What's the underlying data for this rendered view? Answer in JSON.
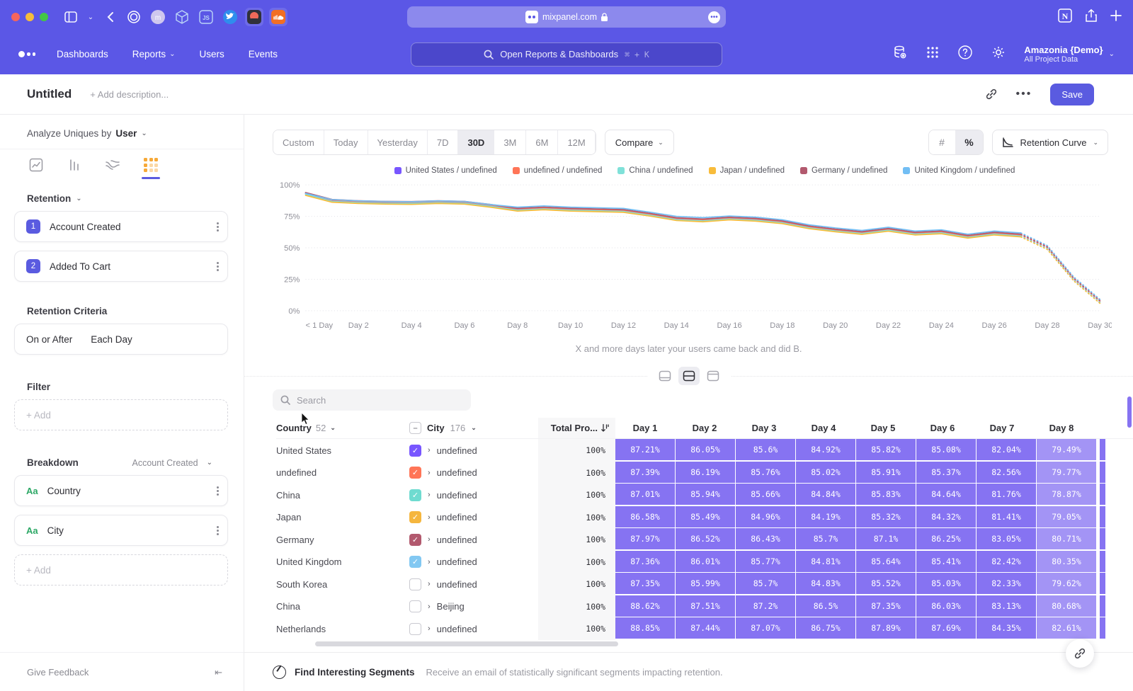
{
  "browser": {
    "url": "mixpanel.com"
  },
  "nav": {
    "items": [
      {
        "label": "Dashboards"
      },
      {
        "label": "Reports",
        "chevron": true
      },
      {
        "label": "Users"
      },
      {
        "label": "Events"
      }
    ],
    "search_placeholder": "Open Reports & Dashboards",
    "search_shortcut": "⌘ + K",
    "account_name": "Amazonia {Demo}",
    "account_sub": "All Project Data"
  },
  "title_bar": {
    "title": "Untitled",
    "description_placeholder": "+ Add description...",
    "save_label": "Save"
  },
  "sidebar": {
    "analyze_label": "Analyze Uniques by",
    "analyze_value": "User",
    "section_label": "Retention",
    "steps": [
      {
        "num": "1",
        "label": "Account Created"
      },
      {
        "num": "2",
        "label": "Added To Cart"
      }
    ],
    "criteria_label": "Retention Criteria",
    "criteria_value_1": "On or After",
    "criteria_value_2": "Each Day",
    "filter_label": "Filter",
    "add_label": "+ Add",
    "breakdown_label": "Breakdown",
    "breakdown_scope": "Account Created",
    "breakdowns": [
      {
        "type": "Aa",
        "label": "Country"
      },
      {
        "type": "Aa",
        "label": "City"
      }
    ],
    "give_feedback": "Give Feedback"
  },
  "toolbar": {
    "ranges": [
      {
        "label": "Custom",
        "icon": true
      },
      {
        "label": "Today"
      },
      {
        "label": "Yesterday"
      },
      {
        "label": "7D"
      },
      {
        "label": "30D",
        "active": true
      },
      {
        "label": "3M"
      },
      {
        "label": "6M"
      },
      {
        "label": "12M"
      }
    ],
    "compare_label": "Compare",
    "hash_label": "#",
    "percent_label": "%",
    "chart_type_label": "Retention Curve"
  },
  "chart_data": {
    "type": "line",
    "title": "Retention Curve",
    "x_count": 31,
    "solid_until": 27,
    "ylim": [
      0,
      100
    ],
    "y_gridlines": [
      {
        "label": "100%",
        "value": 100
      },
      {
        "label": "75%",
        "value": 75
      },
      {
        "label": "50%",
        "value": 50
      },
      {
        "label": "25%",
        "value": 25
      },
      {
        "label": "0%",
        "value": 0
      }
    ],
    "x_ticks": [
      "< 1 Day",
      "Day 2",
      "Day 4",
      "Day 6",
      "Day 8",
      "Day 10",
      "Day 12",
      "Day 14",
      "Day 16",
      "Day 18",
      "Day 20",
      "Day 22",
      "Day 24",
      "Day 26",
      "Day 28",
      "Day 30"
    ],
    "series": [
      {
        "name": "United States / undefined",
        "color": "#7856FF",
        "values": [
          93,
          87.5,
          86.5,
          86,
          85.8,
          86.5,
          86,
          83.5,
          80.5,
          81.5,
          80.5,
          80,
          79.5,
          76.5,
          73,
          72,
          73.5,
          72.5,
          70.5,
          66.5,
          64,
          62,
          64.5,
          61.5,
          62.5,
          59,
          61.5,
          60,
          50,
          25,
          7
        ]
      },
      {
        "name": "undefined / undefined",
        "color": "#FF7557",
        "values": [
          93.4,
          87.9,
          86.9,
          86.4,
          86.2,
          86.9,
          86.4,
          83.9,
          80.9,
          81.9,
          80.9,
          80.4,
          79.9,
          76.9,
          73.4,
          72.4,
          73.9,
          72.9,
          70.9,
          66.9,
          64.4,
          62.4,
          64.9,
          61.9,
          62.9,
          59.4,
          61.9,
          60.4,
          50.4,
          25.4,
          7.4
        ]
      },
      {
        "name": "China / undefined",
        "color": "#80E1D9",
        "values": [
          92.4,
          86.9,
          85.9,
          85.4,
          85.2,
          85.9,
          85.4,
          82.9,
          79.9,
          80.9,
          79.9,
          79.4,
          78.9,
          75.9,
          72.4,
          71.4,
          72.9,
          71.9,
          69.9,
          65.9,
          63.4,
          61.4,
          63.9,
          60.9,
          61.9,
          58.4,
          60.9,
          59.4,
          49.4,
          24.4,
          6.4
        ]
      },
      {
        "name": "Japan / undefined",
        "color": "#F8BC3B",
        "values": [
          91.7,
          86.2,
          85.2,
          84.7,
          84.5,
          85.2,
          84.7,
          82.2,
          79.2,
          80.2,
          79.2,
          78.7,
          78.2,
          75.2,
          71.7,
          70.7,
          72.2,
          71.2,
          69.2,
          65.2,
          62.7,
          60.7,
          63.2,
          60.2,
          61.2,
          57.7,
          60.2,
          58.7,
          48.7,
          23.7,
          5.7
        ]
      },
      {
        "name": "Germany / undefined",
        "color": "#B2596E",
        "values": [
          93.9,
          88.4,
          87.4,
          86.9,
          86.7,
          87.4,
          86.9,
          84.4,
          81.4,
          82.4,
          81.4,
          80.9,
          80.4,
          77.4,
          73.9,
          72.9,
          74.4,
          73.4,
          71.4,
          67.4,
          64.9,
          62.9,
          65.4,
          62.4,
          63.4,
          59.9,
          62.4,
          60.9,
          50.9,
          25.9,
          7.9
        ]
      },
      {
        "name": "United Kingdom / undefined",
        "color": "#72BEF4",
        "values": [
          93.2,
          88.3,
          87.3,
          86.8,
          86.6,
          87.3,
          86.8,
          84.3,
          82.3,
          83.3,
          82.3,
          81.8,
          81.3,
          78.3,
          75,
          74,
          75.3,
          74.3,
          72.3,
          68.3,
          65.8,
          63.8,
          66.3,
          63.3,
          64.3,
          60.8,
          63.3,
          61.8,
          51.8,
          26.8,
          8.8
        ]
      }
    ]
  },
  "caption": "X and more days later your users came back and did B.",
  "search_placeholder": "Search",
  "table": {
    "country_header": "Country",
    "country_count": "52",
    "city_header": "City",
    "city_count": "176",
    "total_header": "Total Pro...",
    "day_headers": [
      "Day 1",
      "Day 2",
      "Day 3",
      "Day 4",
      "Day 5",
      "Day 6",
      "Day 7",
      "Day 8"
    ],
    "rows": [
      {
        "country": "United States",
        "checked": true,
        "checkbox_color": "#7856FF",
        "city": "undefined",
        "total": "100%",
        "d1": "87.21%",
        "d2": "86.05%",
        "d3": "85.6%",
        "d4": "84.92%",
        "d5": "85.82%",
        "d6": "85.08%",
        "d7": "82.04%",
        "d8": "79.49%"
      },
      {
        "country": "undefined",
        "checked": true,
        "checkbox_color": "#FF7557",
        "city": "undefined",
        "total": "100%",
        "d1": "87.39%",
        "d2": "86.19%",
        "d3": "85.76%",
        "d4": "85.02%",
        "d5": "85.91%",
        "d6": "85.37%",
        "d7": "82.56%",
        "d8": "79.77%"
      },
      {
        "country": "China",
        "checked": true,
        "checkbox_color": "#6FDBD0",
        "city": "undefined",
        "total": "100%",
        "d1": "87.01%",
        "d2": "85.94%",
        "d3": "85.66%",
        "d4": "84.84%",
        "d5": "85.83%",
        "d6": "84.64%",
        "d7": "81.76%",
        "d8": "78.87%"
      },
      {
        "country": "Japan",
        "checked": true,
        "checkbox_color": "#F5B63E",
        "city": "undefined",
        "total": "100%",
        "d1": "86.58%",
        "d2": "85.49%",
        "d3": "84.96%",
        "d4": "84.19%",
        "d5": "85.32%",
        "d6": "84.32%",
        "d7": "81.41%",
        "d8": "79.05%"
      },
      {
        "country": "Germany",
        "checked": true,
        "checkbox_color": "#B2596E",
        "city": "undefined",
        "total": "100%",
        "d1": "87.97%",
        "d2": "86.52%",
        "d3": "86.43%",
        "d4": "85.7%",
        "d5": "87.1%",
        "d6": "86.25%",
        "d7": "83.05%",
        "d8": "80.71%"
      },
      {
        "country": "United Kingdom",
        "checked": true,
        "checkbox_color": "#82C8F2",
        "city": "undefined",
        "total": "100%",
        "d1": "87.36%",
        "d2": "86.01%",
        "d3": "85.77%",
        "d4": "84.81%",
        "d5": "85.64%",
        "d6": "85.41%",
        "d7": "82.42%",
        "d8": "80.35%"
      },
      {
        "country": "South Korea",
        "checked": false,
        "city": "undefined",
        "total": "100%",
        "d1": "87.35%",
        "d2": "85.99%",
        "d3": "85.7%",
        "d4": "84.83%",
        "d5": "85.52%",
        "d6": "85.03%",
        "d7": "82.33%",
        "d8": "79.62%"
      },
      {
        "country": "China",
        "checked": false,
        "city": "Beijing",
        "total": "100%",
        "d1": "88.62%",
        "d2": "87.51%",
        "d3": "87.2%",
        "d4": "86.5%",
        "d5": "87.35%",
        "d6": "86.03%",
        "d7": "83.13%",
        "d8": "80.68%"
      },
      {
        "country": "Netherlands",
        "checked": false,
        "city": "undefined",
        "total": "100%",
        "d1": "88.85%",
        "d2": "87.44%",
        "d3": "87.07%",
        "d4": "86.75%",
        "d5": "87.89%",
        "d6": "87.69%",
        "d7": "84.35%",
        "d8": "82.61%"
      }
    ]
  },
  "footer": {
    "title": "Find Interesting Segments",
    "description": "Receive an email of statistically significant segments impacting retention."
  }
}
